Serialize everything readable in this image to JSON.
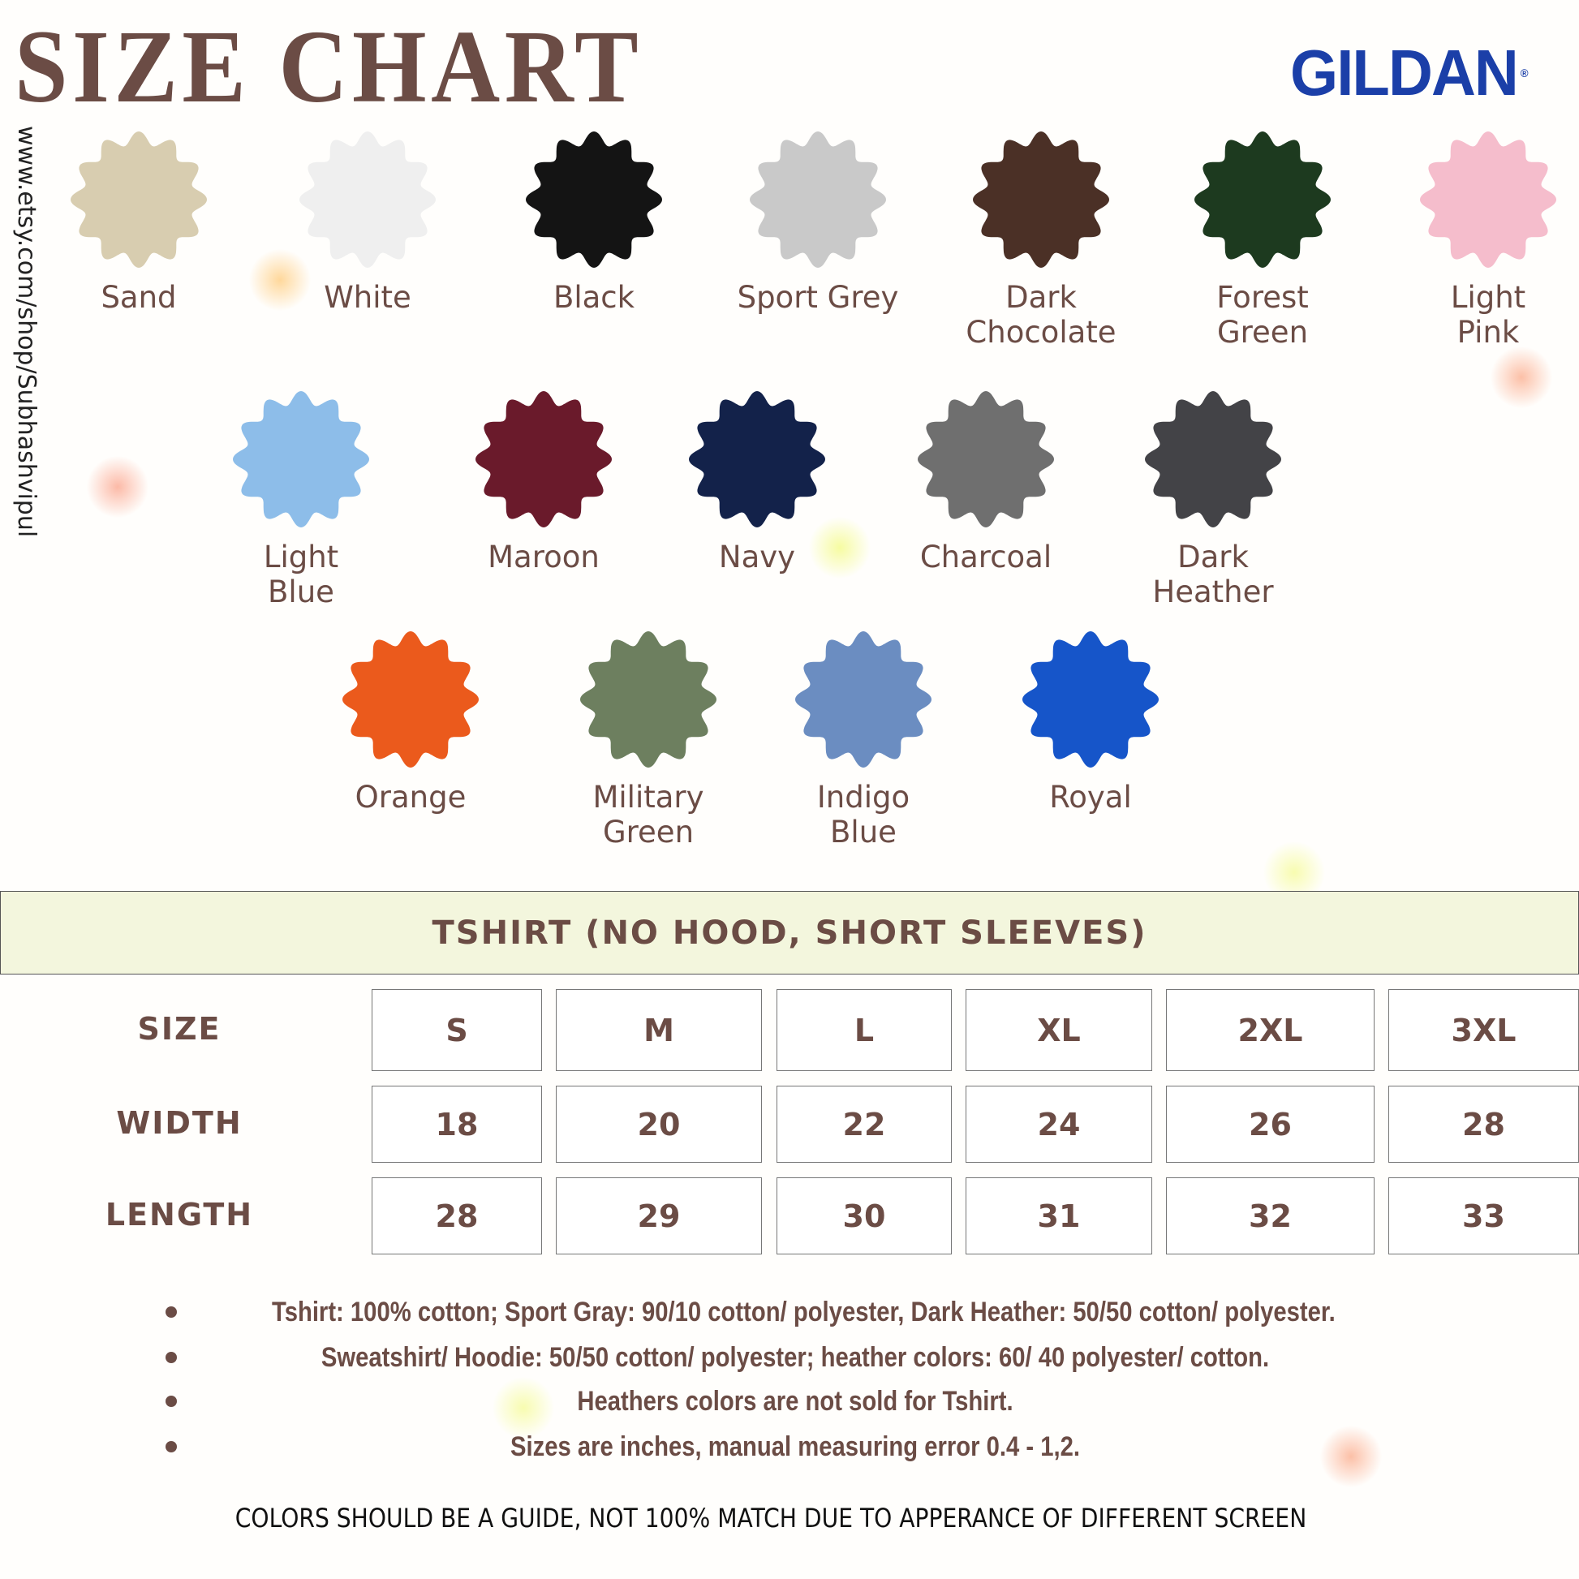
{
  "header": {
    "title": "SIZE CHART",
    "brand": "GILDAN",
    "brand_mark": "®",
    "brand_color": "#1b3fa8",
    "shop_url": "www.etsy.com/shop/Subhashvipul"
  },
  "colors": [
    {
      "name": "Sand",
      "hex": "#d8cdb0"
    },
    {
      "name": "White",
      "hex": "#efefef"
    },
    {
      "name": "Black",
      "hex": "#141414"
    },
    {
      "name": "Sport Grey",
      "hex": "#c9c9c9"
    },
    {
      "name": "Dark\nChocolate",
      "hex": "#4b3026"
    },
    {
      "name": "Forest\nGreen",
      "hex": "#1d3a1f"
    },
    {
      "name": "Light\nPink",
      "hex": "#f5bdcc"
    },
    {
      "name": "Light\nBlue",
      "hex": "#8dbde9"
    },
    {
      "name": "Maroon",
      "hex": "#6a1a2b"
    },
    {
      "name": "Navy",
      "hex": "#13224a"
    },
    {
      "name": "Charcoal",
      "hex": "#6f6f6f"
    },
    {
      "name": "Dark\nHeather",
      "hex": "#434347"
    },
    {
      "name": "Orange",
      "hex": "#eb5a1c"
    },
    {
      "name": "Military\nGreen",
      "hex": "#6d7f5f"
    },
    {
      "name": "Indigo\nBlue",
      "hex": "#6b8dc1"
    },
    {
      "name": "Royal",
      "hex": "#1655c9"
    }
  ],
  "table": {
    "title": "TSHIRT (NO HOOD, SHORT SLEEVES)",
    "rows": [
      {
        "label": "SIZE",
        "values": [
          "S",
          "M",
          "L",
          "XL",
          "2XL",
          "3XL"
        ]
      },
      {
        "label": "WIDTH",
        "values": [
          "18",
          "20",
          "22",
          "24",
          "26",
          "28"
        ]
      },
      {
        "label": "LENGTH",
        "values": [
          "28",
          "29",
          "30",
          "31",
          "32",
          "33"
        ]
      }
    ]
  },
  "notes": [
    "Tshirt: 100% cotton; Sport Gray: 90/10 cotton/ polyester, Dark Heather: 50/50 cotton/ polyester.",
    "Sweatshirt/ Hoodie: 50/50 cotton/ polyester; heather colors: 60/ 40 polyester/ cotton.",
    "Heathers colors are not sold for Tshirt.",
    "Sizes are inches, manual measuring error 0.4 - 1,2."
  ],
  "footer": "COLORS SHOULD BE A GUIDE, NOT 100% MATCH DUE TO APPERANCE OF DIFFERENT SCREEN",
  "text_color": "#6b4c45"
}
